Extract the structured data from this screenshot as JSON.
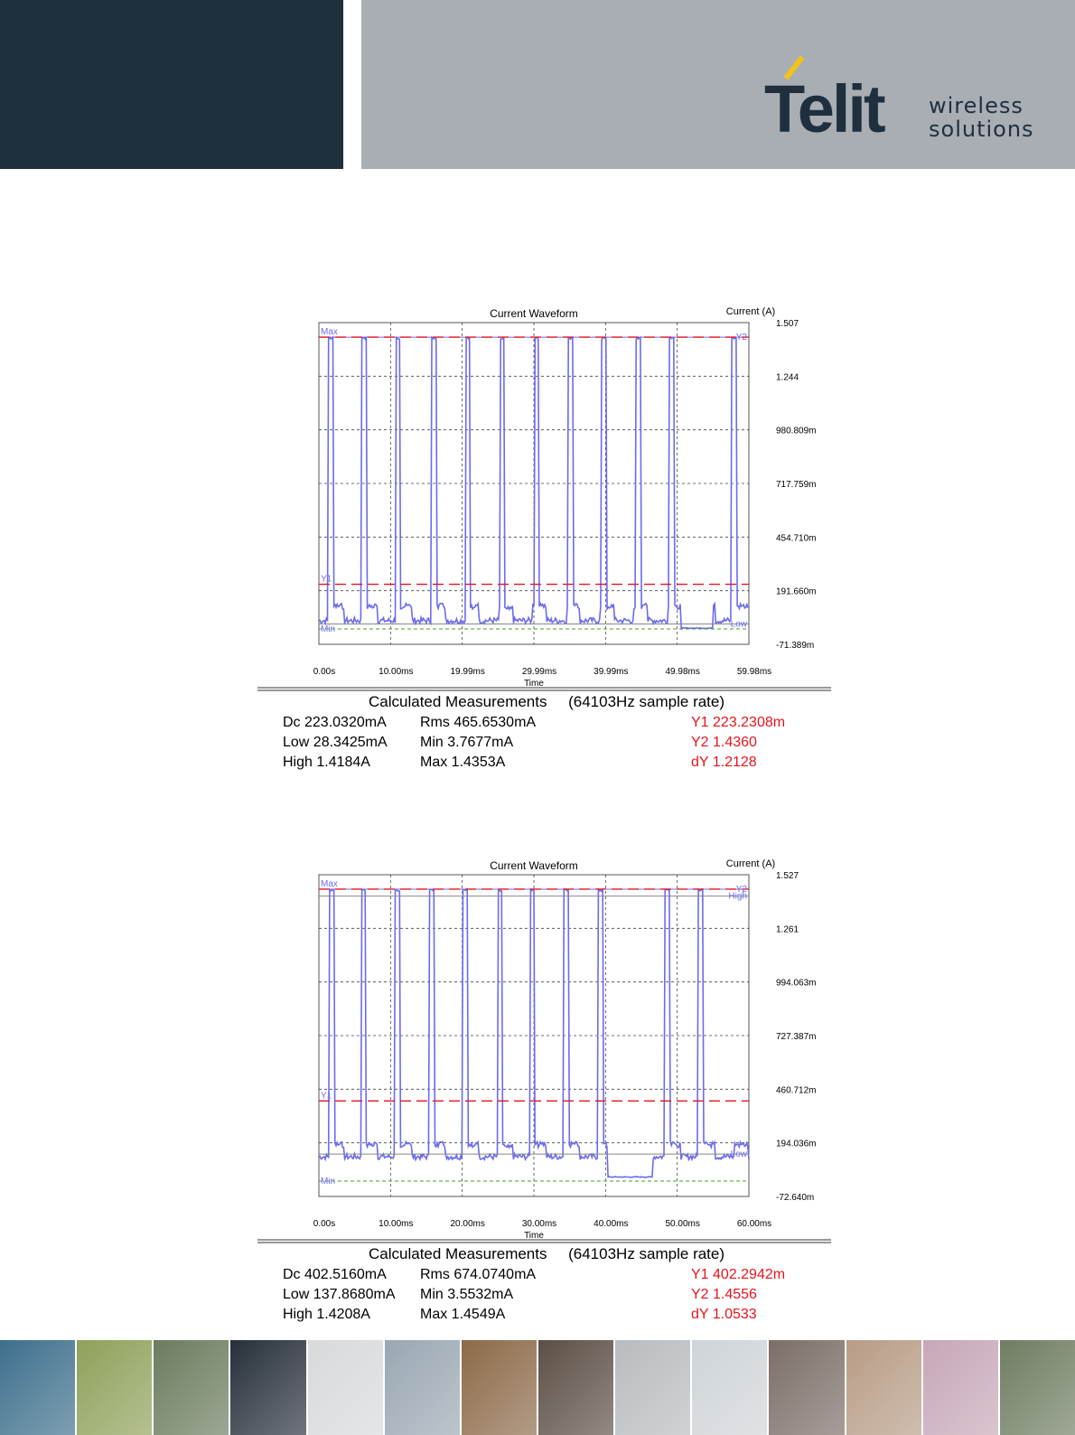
{
  "header": {
    "logo_text": "Telit",
    "tagline_line1": "wireless",
    "tagline_line2": "solutions",
    "dark_color": "#1f2f3d",
    "grey_color": "#a9aeb4",
    "accent_color": "#f2c318"
  },
  "chart_data": [
    {
      "type": "line",
      "title": "Current Waveform",
      "ylabel": "Current (A)",
      "xlabel": "Time",
      "x_ticks": [
        "0.00s",
        "10.00ms",
        "19.99ms",
        "29.99ms",
        "39.99ms",
        "49.98ms",
        "59.98ms"
      ],
      "y_ticks": [
        "1.507",
        "1.244",
        "980.809m",
        "717.759m",
        "454.710m",
        "191.660m",
        "-71.389m"
      ],
      "ylim": [
        -0.071389,
        1.507
      ],
      "xlim": [
        0,
        59.98
      ],
      "x_unit": "ms",
      "grid": true,
      "markers": [
        {
          "label": "Max",
          "value": 1.4353
        },
        {
          "label": "Y1",
          "value": 0.2232308
        },
        {
          "label": "Y2",
          "value": 1.436
        },
        {
          "label": "Low",
          "value": 0.0283425
        },
        {
          "label": "Min",
          "value": 0.0037677
        }
      ],
      "pulse_starts_ms": [
        1.3,
        6.0,
        10.7,
        15.7,
        20.4,
        25.2,
        30.0,
        34.7,
        39.4,
        44.2,
        48.8,
        57.5
      ],
      "pulse_width_ms": 0.7,
      "idle_level": 0.03,
      "idle_burst_level": 0.13,
      "quiet_interval_ms": [
        50.5,
        55.0
      ],
      "measurements": {
        "title": "Calculated Measurements",
        "sample_rate": "(64103Hz sample rate)",
        "dc": "Dc 223.0320mA",
        "low": "Low  28.3425mA",
        "high": "High   1.4184A",
        "rms": "Rms 465.6530mA",
        "min": "Min   3.7677mA",
        "max": "Max   1.4353A",
        "y1": "Y1 223.2308m",
        "y2": "Y2   1.4360",
        "dy": "dY   1.2128"
      }
    },
    {
      "type": "line",
      "title": "Current Waveform",
      "ylabel": "Current (A)",
      "xlabel": "Time",
      "x_ticks": [
        "0.00s",
        "10.00ms",
        "20.00ms",
        "30.00ms",
        "40.00ms",
        "50.00ms",
        "60.00ms"
      ],
      "y_ticks": [
        "1.527",
        "1.261",
        "994.063m",
        "727.387m",
        "460.712m",
        "194.036m",
        "-72.640m"
      ],
      "ylim": [
        -0.07264,
        1.527
      ],
      "xlim": [
        0,
        60.0
      ],
      "x_unit": "ms",
      "grid": true,
      "markers": [
        {
          "label": "Max",
          "value": 1.4549
        },
        {
          "label": "High",
          "value": 1.4208
        },
        {
          "label": "Y1",
          "value": 0.4022942
        },
        {
          "label": "Y2",
          "value": 1.4556
        },
        {
          "label": "Low",
          "value": 0.137868
        },
        {
          "label": "Min",
          "value": 0.0035532
        }
      ],
      "pulse_starts_ms": [
        1.4,
        5.9,
        10.6,
        15.4,
        20.0,
        24.9,
        29.4,
        34.1,
        38.9,
        48.2,
        52.9
      ],
      "pulse_width_ms": 0.7,
      "idle_level": 0.11,
      "idle_burst_level": 0.2,
      "quiet_interval_ms": [
        40.2,
        46.6
      ],
      "measurements": {
        "title": "Calculated Measurements",
        "sample_rate": "(64103Hz sample rate)",
        "dc": "Dc 402.5160mA",
        "low": "Low 137.8680mA",
        "high": "High   1.4208A",
        "rms": "Rms 674.0740mA",
        "min": "Min   3.5532mA",
        "max": "Max   1.4549A",
        "y1": "Y1 402.2942m",
        "y2": "Y2   1.4556",
        "dy": "dY   1.0533"
      }
    }
  ],
  "footer": {
    "tile_colors": [
      "#3d6f8c",
      "#8fa15a",
      "#6b7c5e",
      "#27303a",
      "#d7d9db",
      "#9aa7b3",
      "#8c6a48",
      "#5c4f45",
      "#b8bcbf",
      "#cfd4d8",
      "#7b6e67",
      "#b89c86",
      "#c7a7b8",
      "#6f7d62"
    ]
  }
}
